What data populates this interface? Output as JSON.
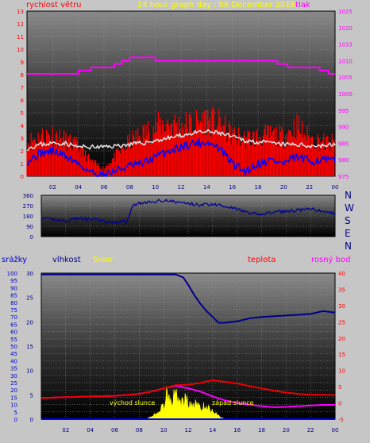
{
  "title": "24 hour graph day : 08 December 2018",
  "colors": {
    "background": "#c6c6c6",
    "wind": "#ff0000",
    "gust": "#dcdcdc",
    "wind_avg": "#0000ff",
    "pressure": "#ff00ff",
    "direction": "#000099",
    "humidity": "#00008b",
    "temperature": "#ee0000",
    "dewpoint": "#ff00ff",
    "solar": "#ffff00",
    "rain": "#0000ff",
    "grid": "#9a9a9a"
  },
  "labels": {
    "wind_speed": "rychlost větru",
    "pressure": "tlak",
    "rain": "srážky",
    "humidity": "vlhkost",
    "solar": "Solar",
    "temperature": "teplota",
    "dewpoint": "rosný bod",
    "sunrise": "východ slunce",
    "sunset": "západ slunce"
  },
  "compass": [
    "N",
    "W",
    "S",
    "E",
    "N"
  ],
  "chart_data": [
    {
      "type": "line",
      "name": "wind-pressure-panel",
      "x_ticks": [
        "02",
        "04",
        "06",
        "08",
        "10",
        "12",
        "14",
        "16",
        "18",
        "20",
        "22",
        "00"
      ],
      "y_left": {
        "label": "rychlost větru",
        "range": [
          0,
          13
        ],
        "ticks": [
          0,
          1,
          2,
          3,
          4,
          5,
          6,
          7,
          8,
          9,
          10,
          11,
          12,
          13
        ]
      },
      "y_right": {
        "label": "tlak",
        "range": [
          975,
          1025
        ],
        "ticks": [
          975,
          980,
          985,
          990,
          995,
          1000,
          1005,
          1010,
          1015,
          1020,
          1025
        ]
      },
      "x_range": [
        0,
        24
      ],
      "series": [
        {
          "key": "pressure",
          "axis": "right",
          "x": [
            0,
            4.0,
            4.0,
            5.0,
            5.0,
            6.8,
            6.8,
            7.4,
            7.4,
            8.0,
            8.0,
            10.0,
            10.0,
            13.2,
            13.2,
            19.5,
            19.5,
            20.3,
            20.3,
            22.8,
            22.8,
            23.5,
            23.5,
            24
          ],
          "y": [
            1006,
            1006,
            1007,
            1007,
            1008,
            1008,
            1009,
            1009,
            1010,
            1010,
            1011,
            1011,
            1010,
            1010,
            1010,
            1010,
            1009,
            1009,
            1008,
            1008,
            1007,
            1007,
            1006,
            1006
          ]
        },
        {
          "key": "gust",
          "axis": "left",
          "x": [
            0,
            1,
            2,
            3,
            4,
            5,
            6,
            7,
            8,
            9,
            10,
            11,
            12,
            13,
            14,
            15,
            16,
            17,
            18,
            19,
            20,
            21,
            22,
            23,
            24
          ],
          "y": [
            2.2,
            2.5,
            2.6,
            2.6,
            2.3,
            2.3,
            2.3,
            2.4,
            2.5,
            2.6,
            2.8,
            3.0,
            3.2,
            3.4,
            3.5,
            3.4,
            3.1,
            2.8,
            2.7,
            2.6,
            2.5,
            2.5,
            2.4,
            2.4,
            2.5
          ]
        },
        {
          "key": "wind_avg",
          "axis": "left",
          "x": [
            0,
            1,
            2,
            3,
            4,
            5,
            6,
            7,
            8,
            9,
            10,
            11,
            12,
            13,
            14,
            15,
            16,
            17,
            18,
            19,
            20,
            21,
            22,
            23,
            24
          ],
          "y": [
            1.2,
            1.8,
            2.0,
            1.6,
            1.0,
            0.3,
            0.1,
            0.5,
            0.8,
            1.0,
            1.5,
            2.0,
            2.3,
            2.6,
            2.7,
            2.2,
            1.0,
            0.4,
            1.0,
            1.3,
            1.0,
            1.5,
            1.2,
            1.3,
            1.2
          ]
        },
        {
          "key": "wind_peak",
          "axis": "left",
          "x": [
            0,
            1,
            2,
            3,
            4,
            5,
            6,
            7,
            8,
            9,
            10,
            11,
            12,
            13,
            14,
            15,
            16,
            17,
            18,
            19,
            20,
            21,
            22,
            23,
            24
          ],
          "y": [
            3.5,
            4.0,
            4.3,
            3.6,
            3.0,
            1.5,
            0.8,
            2.2,
            3.5,
            4.3,
            5.0,
            5.4,
            5.2,
            5.3,
            5.8,
            5.3,
            4.2,
            3.8,
            4.0,
            4.2,
            4.0,
            5.2,
            3.8,
            3.5,
            3.3
          ]
        }
      ]
    },
    {
      "type": "line",
      "name": "direction-panel",
      "y_range": [
        0,
        360
      ],
      "y_ticks": [
        0,
        90,
        180,
        270,
        360
      ],
      "x_range": [
        0,
        24
      ],
      "series": [
        {
          "key": "direction",
          "x": [
            0,
            1,
            2,
            3,
            4,
            5,
            5.5,
            6,
            6.5,
            7,
            7.5,
            8,
            9,
            10,
            11,
            12,
            13,
            14,
            15,
            16,
            17,
            18,
            19,
            20,
            21,
            22,
            23,
            24
          ],
          "y": [
            155,
            150,
            140,
            160,
            150,
            140,
            115,
            130,
            130,
            130,
            280,
            290,
            300,
            320,
            300,
            290,
            275,
            285,
            270,
            240,
            200,
            195,
            215,
            220,
            230,
            240,
            220,
            200
          ]
        }
      ]
    },
    {
      "type": "line",
      "name": "humidity-temperature-panel",
      "x_ticks": [
        "02",
        "04",
        "06",
        "08",
        "10",
        "12",
        "14",
        "16",
        "18",
        "20",
        "22",
        "00"
      ],
      "y_left": {
        "label": "srážky / vlhkost",
        "range": [
          0,
          100
        ],
        "ticks": [
          0,
          5,
          10,
          15,
          20,
          25,
          30,
          35,
          40,
          45,
          50,
          55,
          60,
          65,
          70,
          75,
          80,
          85,
          90,
          95,
          100
        ]
      },
      "y_mid": {
        "label": "Solar",
        "range": [
          0,
          30
        ],
        "ticks": [
          0,
          5,
          10,
          15,
          20,
          25,
          30
        ]
      },
      "y_right": {
        "label": "teplota / rosný bod",
        "range": [
          -5,
          40
        ],
        "ticks": [
          -5,
          0,
          5,
          10,
          15,
          20,
          25,
          30,
          35,
          40
        ]
      },
      "x_range": [
        0,
        24
      ],
      "series": [
        {
          "key": "humidity",
          "axis": "left",
          "x": [
            0,
            10,
            11,
            11.6,
            12,
            12.5,
            13,
            13.5,
            14,
            14.5,
            15,
            16,
            17,
            18,
            20,
            22,
            23,
            24
          ],
          "y": [
            99,
            99,
            99,
            97,
            92,
            85,
            79,
            74,
            70,
            66,
            66,
            67,
            69,
            70,
            71,
            72,
            74,
            73
          ]
        },
        {
          "key": "temperature",
          "axis": "right",
          "x": [
            0,
            2,
            4,
            6,
            8,
            9,
            10,
            11,
            12,
            13,
            14,
            15,
            16,
            17,
            18,
            19,
            20,
            21,
            22,
            23,
            24
          ],
          "y": [
            1.5,
            1.8,
            2.0,
            2.2,
            2.8,
            3.5,
            4.5,
            5.5,
            5.6,
            6.2,
            7.0,
            6.5,
            6.0,
            5.2,
            4.5,
            3.8,
            3.2,
            2.8,
            2.5,
            2.5,
            2.4
          ]
        },
        {
          "key": "dewpoint",
          "axis": "right",
          "x": [
            0,
            2,
            4,
            6,
            8,
            9,
            10,
            11,
            12,
            13,
            14,
            15,
            16,
            17,
            18,
            19,
            20,
            21,
            22,
            23,
            24
          ],
          "y": [
            1.5,
            1.8,
            2.0,
            2.2,
            2.8,
            3.5,
            4.5,
            5.3,
            4.5,
            3.5,
            2.0,
            0.8,
            0.0,
            -0.5,
            -1.0,
            -1.3,
            -1.2,
            -1.0,
            -0.8,
            -0.6,
            -0.6
          ]
        },
        {
          "key": "solar",
          "axis": "mid",
          "fill": true,
          "x": [
            0,
            8.5,
            9.0,
            9.5,
            10.0,
            10.3,
            10.6,
            11.0,
            11.4,
            11.8,
            12.2,
            12.6,
            13.0,
            13.4,
            13.8,
            14.2,
            14.6,
            15.0,
            24
          ],
          "y": [
            0,
            0,
            0.6,
            1.5,
            3.0,
            6.5,
            4.5,
            5.5,
            3.8,
            4.5,
            3.0,
            3.5,
            2.5,
            3.0,
            2.2,
            1.5,
            0.6,
            0,
            0
          ]
        },
        {
          "key": "rain",
          "axis": "left",
          "x": [
            0,
            24
          ],
          "y": [
            0,
            0
          ]
        }
      ]
    }
  ]
}
